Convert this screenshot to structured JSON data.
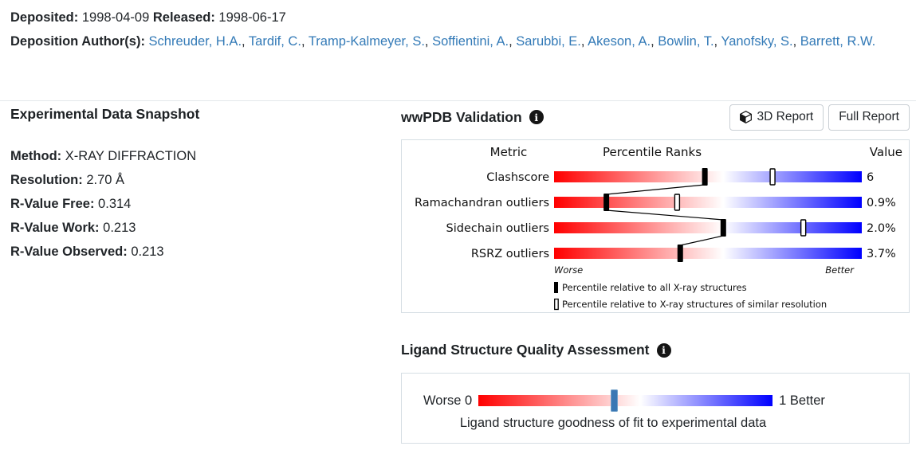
{
  "header": {
    "deposited_label": "Deposited:",
    "deposited_value": "1998-04-09",
    "released_label": "Released:",
    "released_value": "1998-06-17",
    "authors_label": "Deposition Author(s):",
    "authors": [
      "Schreuder, H.A.",
      "Tardif, C.",
      "Tramp-Kalmeyer, S.",
      "Soffientini, A.",
      "Sarubbi, E.",
      "Akeson, A.",
      "Bowlin, T.",
      "Yanofsky, S.",
      "Barrett, R.W."
    ]
  },
  "experimental": {
    "title": "Experimental Data Snapshot",
    "fields": [
      {
        "label": "Method:",
        "value": "X-RAY DIFFRACTION"
      },
      {
        "label": "Resolution:",
        "value": "2.70 Å"
      },
      {
        "label": "R-Value Free:",
        "value": "0.314"
      },
      {
        "label": "R-Value Work:",
        "value": "0.213"
      },
      {
        "label": "R-Value Observed:",
        "value": "0.213"
      }
    ]
  },
  "validation": {
    "title": "wwPDB Validation",
    "info_icon": "info-icon",
    "buttons": [
      {
        "label": "3D Report",
        "icon": "cube-icon"
      },
      {
        "label": "Full Report"
      }
    ]
  },
  "chart_data": [
    {
      "type": "slider-percentile-chart",
      "title": "wwPDB Validation",
      "columns": [
        "Metric",
        "Percentile Ranks",
        "Value"
      ],
      "rows": [
        {
          "metric": "Clashscore",
          "value": "6",
          "percentile_all": 49,
          "percentile_resolution": 71
        },
        {
          "metric": "Ramachandran outliers",
          "value": "0.9%",
          "percentile_all": 17,
          "percentile_resolution": 40
        },
        {
          "metric": "Sidechain outliers",
          "value": "2.0%",
          "percentile_all": 55,
          "percentile_resolution": 81
        },
        {
          "metric": "RSRZ outliers",
          "value": "3.7%",
          "percentile_all": 41,
          "percentile_resolution": null
        }
      ],
      "axis": {
        "left": "Worse",
        "right": "Better",
        "range": [
          0,
          100
        ]
      },
      "legend": [
        {
          "marker": "solid",
          "label": "Percentile relative to all X-ray structures"
        },
        {
          "marker": "hollow",
          "label": "Percentile relative to X-ray structures of similar resolution"
        }
      ],
      "colors": {
        "gradient_left": "#ff0000",
        "gradient_mid": "#ffffff",
        "gradient_right": "#0000ff",
        "marker": "#000000"
      }
    },
    {
      "type": "slider",
      "title": "Ligand Structure Quality Assessment",
      "left_label": "Worse 0",
      "right_label": "1 Better",
      "range": [
        0,
        1
      ],
      "marker_position": 0.46,
      "caption": "Ligand structure goodness of fit to experimental data",
      "colors": {
        "marker": "#3a77b4",
        "gradient_left": "#ff0000",
        "gradient_right": "#0000ff"
      }
    }
  ]
}
